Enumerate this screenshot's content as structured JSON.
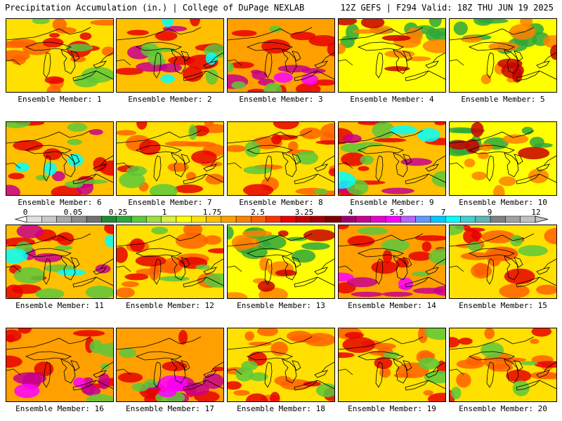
{
  "header": {
    "left_title": "Precipitation Accumulation (in.) | College of DuPage NEXLAB",
    "right_title": "12Z GEFS | F294 Valid: 18Z THU JUN 19 2025"
  },
  "panels": [
    {
      "label": "Ensemble Member: 1",
      "pattern": "moderate"
    },
    {
      "label": "Ensemble Member: 2",
      "pattern": "heavy-west"
    },
    {
      "label": "Ensemble Member: 3",
      "pattern": "heavy-south"
    },
    {
      "label": "Ensemble Member: 4",
      "pattern": "dry-north"
    },
    {
      "label": "Ensemble Member: 5",
      "pattern": "dry-north"
    },
    {
      "label": "Ensemble Member: 6",
      "pattern": "heavy-west"
    },
    {
      "label": "Ensemble Member: 7",
      "pattern": "moderate"
    },
    {
      "label": "Ensemble Member: 8",
      "pattern": "moderate"
    },
    {
      "label": "Ensemble Member: 9",
      "pattern": "heavy-west"
    },
    {
      "label": "Ensemble Member: 10",
      "pattern": "dry-north"
    },
    {
      "label": "Ensemble Member: 11",
      "pattern": "heavy-west"
    },
    {
      "label": "Ensemble Member: 12",
      "pattern": "moderate"
    },
    {
      "label": "Ensemble Member: 13",
      "pattern": "dry-north"
    },
    {
      "label": "Ensemble Member: 14",
      "pattern": "heavy-south"
    },
    {
      "label": "Ensemble Member: 15",
      "pattern": "moderate"
    },
    {
      "label": "Ensemble Member: 16",
      "pattern": "heavy-south"
    },
    {
      "label": "Ensemble Member: 17",
      "pattern": "heavy-south"
    },
    {
      "label": "Ensemble Member: 18",
      "pattern": "moderate"
    },
    {
      "label": "Ensemble Member: 19",
      "pattern": "moderate"
    },
    {
      "label": "Ensemble Member: 20",
      "pattern": "moderate"
    }
  ],
  "colorbar": {
    "tick_labels": [
      "0",
      "0.05",
      "0.25",
      "1",
      "1.75",
      "2.5",
      "3.25",
      "4",
      "5.5",
      "7",
      "9",
      "12"
    ],
    "colors": [
      "#e0e0e0",
      "#c8c8c8",
      "#a8a8a8",
      "#8c8c8c",
      "#707070",
      "#1e8c32",
      "#2ea83c",
      "#5cc83c",
      "#9ee03c",
      "#d8f03c",
      "#ffff00",
      "#ffe000",
      "#ffc000",
      "#ffa000",
      "#ff8000",
      "#ff6000",
      "#ff3000",
      "#e80000",
      "#c80000",
      "#a00000",
      "#800000",
      "#a0006e",
      "#c8008c",
      "#e800c8",
      "#ff00ff",
      "#b464ff",
      "#6496ff",
      "#00c8ff",
      "#00ffff",
      "#40d0d0",
      "#60b4b4",
      "#808080",
      "#a0a0a0",
      "#c0c0c0"
    ]
  }
}
